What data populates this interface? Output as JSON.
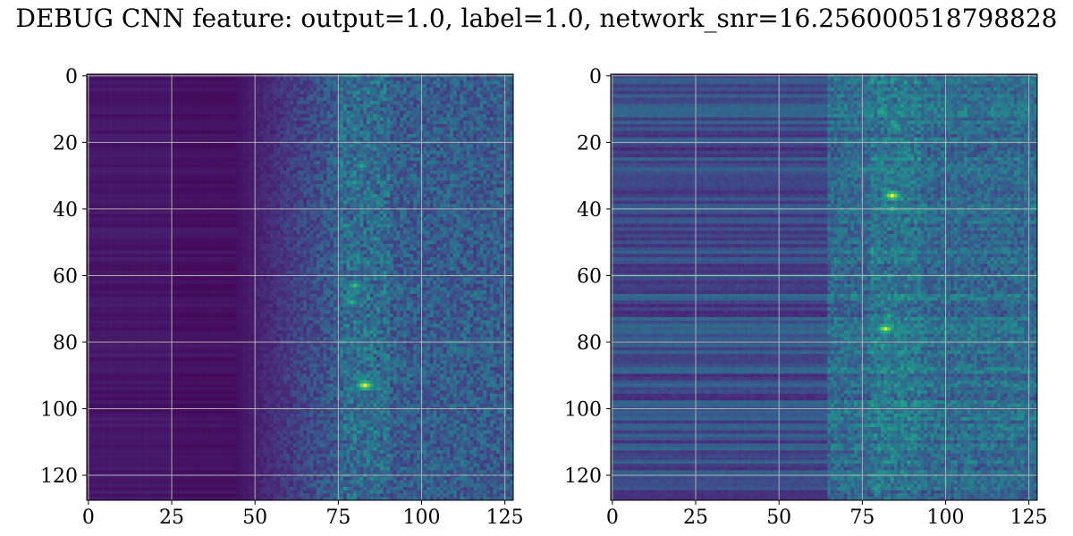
{
  "figure": {
    "title": "DEBUG CNN feature: output=1.0, label=1.0, network_snr=16.256000518798828"
  },
  "chart_data": [
    {
      "type": "heatmap",
      "title": "",
      "xlabel": "",
      "ylabel": "",
      "xlim": [
        -0.5,
        127.5
      ],
      "ylim": [
        127.5,
        -0.5
      ],
      "xticks": [
        0,
        25,
        50,
        75,
        100,
        125
      ],
      "xtick_labels": [
        "0",
        "25",
        "50",
        "75",
        "100",
        "125"
      ],
      "yticks": [
        0,
        20,
        40,
        60,
        80,
        100,
        120
      ],
      "ytick_labels": [
        "0",
        "20",
        "40",
        "60",
        "80",
        "100",
        "120"
      ],
      "grid": true,
      "colormap": "viridis",
      "shape": [
        128,
        128
      ],
      "description_of_values": "Low values (dark purple) in columns 0-50; noisy mid values from column ~50 to 127; brightest (yellow/green) streak near column ~80-85, strongest near row ~93 and rows 60-70.",
      "hot_spots": [
        {
          "row": 93,
          "col": 83,
          "value": 1.0
        },
        {
          "row": 63,
          "col": 80,
          "value": 0.7
        },
        {
          "row": 68,
          "col": 79,
          "value": 0.65
        },
        {
          "row": 27,
          "col": 82,
          "value": 0.6
        },
        {
          "row": 32,
          "col": 80,
          "value": 0.55
        },
        {
          "row": 110,
          "col": 84,
          "value": 0.45
        }
      ]
    },
    {
      "type": "heatmap",
      "title": "",
      "xlabel": "",
      "ylabel": "",
      "xlim": [
        -0.5,
        127.5
      ],
      "ylim": [
        127.5,
        -0.5
      ],
      "xticks": [
        0,
        25,
        50,
        75,
        100,
        125
      ],
      "xtick_labels": [
        "0",
        "25",
        "50",
        "75",
        "100",
        "125"
      ],
      "yticks": [
        0,
        20,
        40,
        60,
        80,
        100,
        120
      ],
      "ytick_labels": [
        "0",
        "20",
        "40",
        "60",
        "80",
        "100",
        "120"
      ],
      "grid": true,
      "colormap": "viridis",
      "shape": [
        128,
        128
      ],
      "description_of_values": "Horizontal banding across all columns with moderate values; brighter noisy region from column ~70 to 127; bright streak near column ~82-85.",
      "hot_spots": [
        {
          "row": 36,
          "col": 84,
          "value": 1.0
        },
        {
          "row": 76,
          "col": 82,
          "value": 0.95
        },
        {
          "row": 40,
          "col": 84,
          "value": 0.7
        },
        {
          "row": 15,
          "col": 85,
          "value": 0.6
        },
        {
          "row": 72,
          "col": 83,
          "value": 0.6
        },
        {
          "row": 95,
          "col": 82,
          "value": 0.55
        },
        {
          "row": 53,
          "col": 82,
          "value": 0.5
        }
      ]
    }
  ],
  "colors": {
    "grid": "#b0b0b0",
    "axes": "#000000"
  }
}
